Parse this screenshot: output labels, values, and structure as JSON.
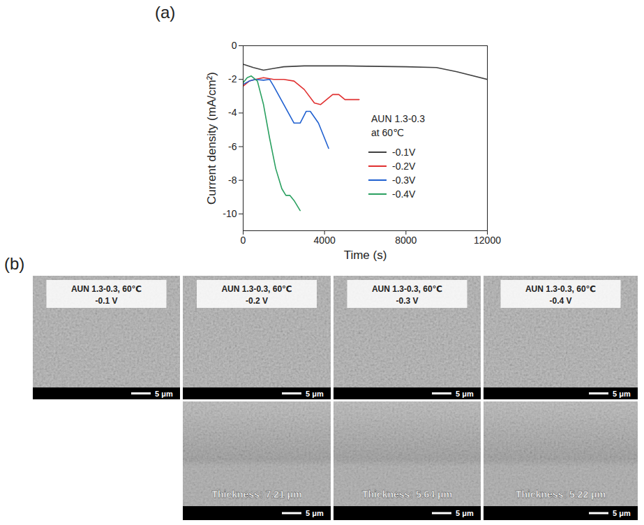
{
  "chart_data": {
    "type": "line",
    "panel_label": "(a)",
    "xlabel": "Time (s)",
    "ylabel": "Current density (mA/cm²)",
    "xlim": [
      0,
      12000
    ],
    "xticks": [
      0,
      4000,
      8000,
      12000
    ],
    "ylim": [
      -11,
      0
    ],
    "yticks": [
      -10,
      -8,
      -6,
      -4,
      -2,
      0
    ],
    "grid": false,
    "legend": "upper right",
    "legend_title": [
      "AUN 1.3-0.3",
      "at 60℃"
    ],
    "series": [
      {
        "name": "-0.1V",
        "color": "#404040",
        "x": [
          0,
          500,
          1000,
          1500,
          2000,
          3000,
          5000,
          8000,
          9500,
          10500,
          12000
        ],
        "values": [
          -1.1,
          -1.3,
          -1.45,
          -1.35,
          -1.25,
          -1.2,
          -1.2,
          -1.25,
          -1.3,
          -1.55,
          -2.0
        ]
      },
      {
        "name": "-0.2V",
        "color": "#e03030",
        "x": [
          0,
          300,
          600,
          1000,
          1500,
          2000,
          2500,
          3000,
          3500,
          3800,
          4100,
          4400,
          4700,
          5000,
          5700
        ],
        "values": [
          -2.4,
          -2.1,
          -2.0,
          -1.9,
          -2.0,
          -2.0,
          -2.1,
          -2.6,
          -3.4,
          -3.5,
          -3.2,
          -2.9,
          -2.9,
          -3.2,
          -3.2
        ]
      },
      {
        "name": "-0.3V",
        "color": "#2060d0",
        "x": [
          0,
          300,
          600,
          1000,
          1300,
          1500,
          2000,
          2500,
          2800,
          3100,
          3300,
          3700,
          4200
        ],
        "values": [
          -2.3,
          -2.1,
          -2.0,
          -2.05,
          -2.0,
          -2.4,
          -3.5,
          -4.6,
          -4.6,
          -3.9,
          -3.9,
          -4.6,
          -6.1
        ]
      },
      {
        "name": "-0.4V",
        "color": "#2aa060",
        "x": [
          0,
          200,
          400,
          700,
          1000,
          1300,
          1600,
          1900,
          2100,
          2300,
          2500,
          2800
        ],
        "values": [
          -2.2,
          -1.9,
          -1.8,
          -2.1,
          -3.5,
          -5.5,
          -7.3,
          -8.5,
          -8.9,
          -8.9,
          -9.2,
          -9.8
        ]
      }
    ]
  },
  "figure": {
    "panel_label": "(b)",
    "scale_bar": "5 μm",
    "surface_images": [
      {
        "title": "AUN 1.3-0.3, 60℃",
        "condition": "-0.1 V"
      },
      {
        "title": "AUN 1.3-0.3, 60℃",
        "condition": "-0.2 V"
      },
      {
        "title": "AUN 1.3-0.3, 60℃",
        "condition": "-0.3 V"
      },
      {
        "title": "AUN 1.3-0.3, 60℃",
        "condition": "-0.4 V"
      }
    ],
    "cross_section_images": [
      null,
      {
        "thickness": "Thickness: 7.21 μm"
      },
      {
        "thickness": "Thickness: 5.64 μm"
      },
      {
        "thickness": "Thickness: 5.22 μm"
      }
    ]
  }
}
